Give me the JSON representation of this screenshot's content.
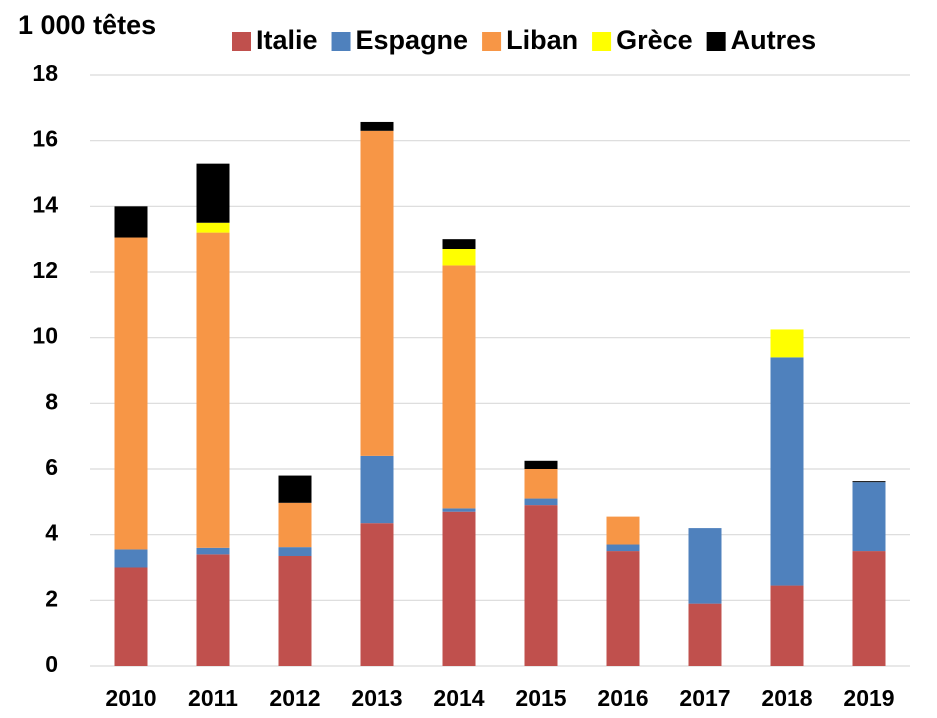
{
  "chart_data": {
    "type": "stacked_bar",
    "y_axis_label": "1 000 têtes",
    "categories": [
      "2010",
      "2011",
      "2012",
      "2013",
      "2014",
      "2015",
      "2016",
      "2017",
      "2018",
      "2019"
    ],
    "series": [
      {
        "name": "Italie",
        "color": "#c0504d",
        "values": [
          3.0,
          3.4,
          3.35,
          4.35,
          4.7,
          4.9,
          3.5,
          1.9,
          2.45,
          3.5
        ]
      },
      {
        "name": "Espagne",
        "color": "#4f81bd",
        "values": [
          0.55,
          0.2,
          0.27,
          2.05,
          0.1,
          0.2,
          0.2,
          2.3,
          6.95,
          2.1
        ]
      },
      {
        "name": "Liban",
        "color": "#f79646",
        "values": [
          9.5,
          9.6,
          1.35,
          9.9,
          7.4,
          0.9,
          0.85,
          0,
          0,
          0
        ]
      },
      {
        "name": "Grèce",
        "color": "#ffff00",
        "values": [
          0,
          0.3,
          0,
          0,
          0.5,
          0,
          0,
          0,
          0.85,
          0
        ]
      },
      {
        "name": "Autres",
        "color": "#000000",
        "values": [
          0.95,
          1.8,
          0.83,
          0.27,
          0.3,
          0.25,
          0,
          0,
          0,
          0.03
        ]
      }
    ],
    "ylim": [
      0,
      18
    ],
    "yticks": [
      0,
      2,
      4,
      6,
      8,
      10,
      12,
      14,
      16,
      18
    ],
    "grid": true,
    "legend": "top"
  }
}
